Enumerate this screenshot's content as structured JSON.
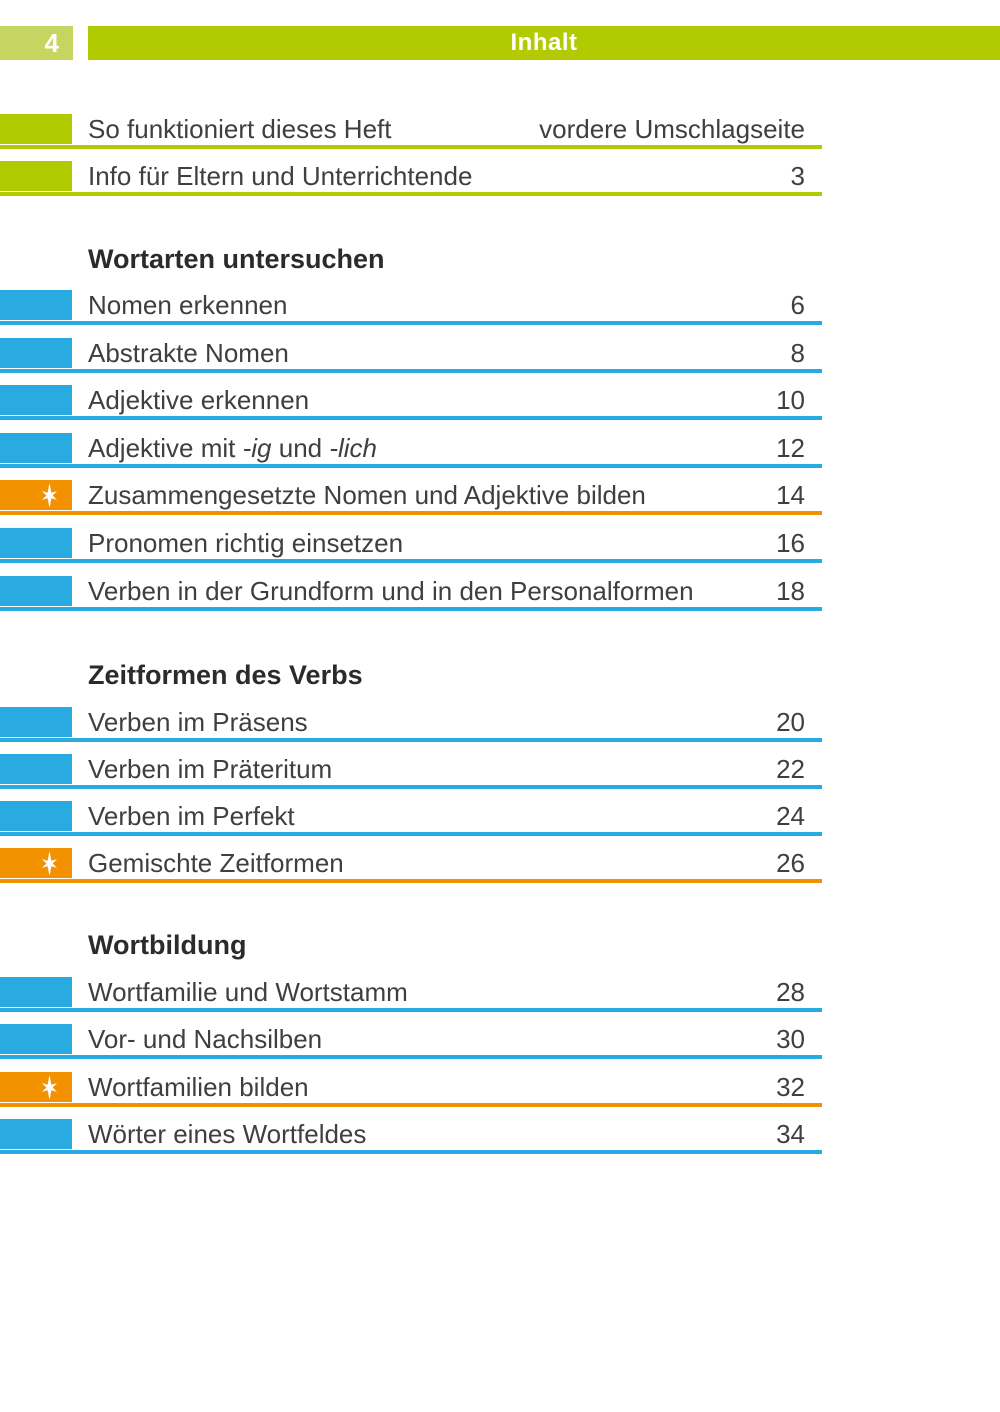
{
  "page": {
    "number": "4",
    "header_title": "Inhalt"
  },
  "colors": {
    "green": "#b2ca02",
    "light_green": "#c6d55f",
    "blue": "#29abe2",
    "orange": "#f39200",
    "text": "#3f3f3e"
  },
  "icons": {
    "star": "star-burst-icon"
  },
  "toc": {
    "intro_items": [
      {
        "label": "So funktioniert dieses Heft",
        "page": "vordere Umschlagseite",
        "color": "green"
      },
      {
        "label": "Info für Eltern und Unterrichtende",
        "page": "3",
        "color": "green"
      }
    ],
    "sections": [
      {
        "heading": "Wortarten untersuchen",
        "items": [
          {
            "label": "Nomen erkennen",
            "page": "6",
            "color": "blue"
          },
          {
            "label": "Abstrakte Nomen",
            "page": "8",
            "color": "blue"
          },
          {
            "label": "Adjektive erkennen",
            "page": "10",
            "color": "blue"
          },
          {
            "label": "Adjektive mit -ig und -lich",
            "label_runs": [
              {
                "text": "Adjektive mit "
              },
              {
                "text": "-ig",
                "italic": true
              },
              {
                "text": " und "
              },
              {
                "text": "-lich",
                "italic": true
              }
            ],
            "page": "12",
            "color": "blue"
          },
          {
            "label": "Zusammengesetzte Nomen und Adjektive bilden",
            "page": "14",
            "color": "orange",
            "star": true
          },
          {
            "label": "Pronomen richtig einsetzen",
            "page": "16",
            "color": "blue"
          },
          {
            "label": "Verben in der Grundform und in den Personalformen",
            "page": "18",
            "color": "blue"
          }
        ]
      },
      {
        "heading": "Zeitformen des Verbs",
        "items": [
          {
            "label": "Verben im Präsens",
            "page": "20",
            "color": "blue"
          },
          {
            "label": "Verben im Präteritum",
            "page": "22",
            "color": "blue"
          },
          {
            "label": "Verben im Perfekt",
            "page": "24",
            "color": "blue"
          },
          {
            "label": "Gemischte Zeitformen",
            "page": "26",
            "color": "orange",
            "star": true
          }
        ]
      },
      {
        "heading": "Wortbildung",
        "items": [
          {
            "label": "Wortfamilie und Wortstamm",
            "page": "28",
            "color": "blue"
          },
          {
            "label": "Vor- und Nachsilben",
            "page": "30",
            "color": "blue"
          },
          {
            "label": "Wortfamilien bilden",
            "page": "32",
            "color": "orange",
            "star": true
          },
          {
            "label": "Wörter eines Wortfeldes",
            "page": "34",
            "color": "blue"
          }
        ]
      }
    ]
  }
}
